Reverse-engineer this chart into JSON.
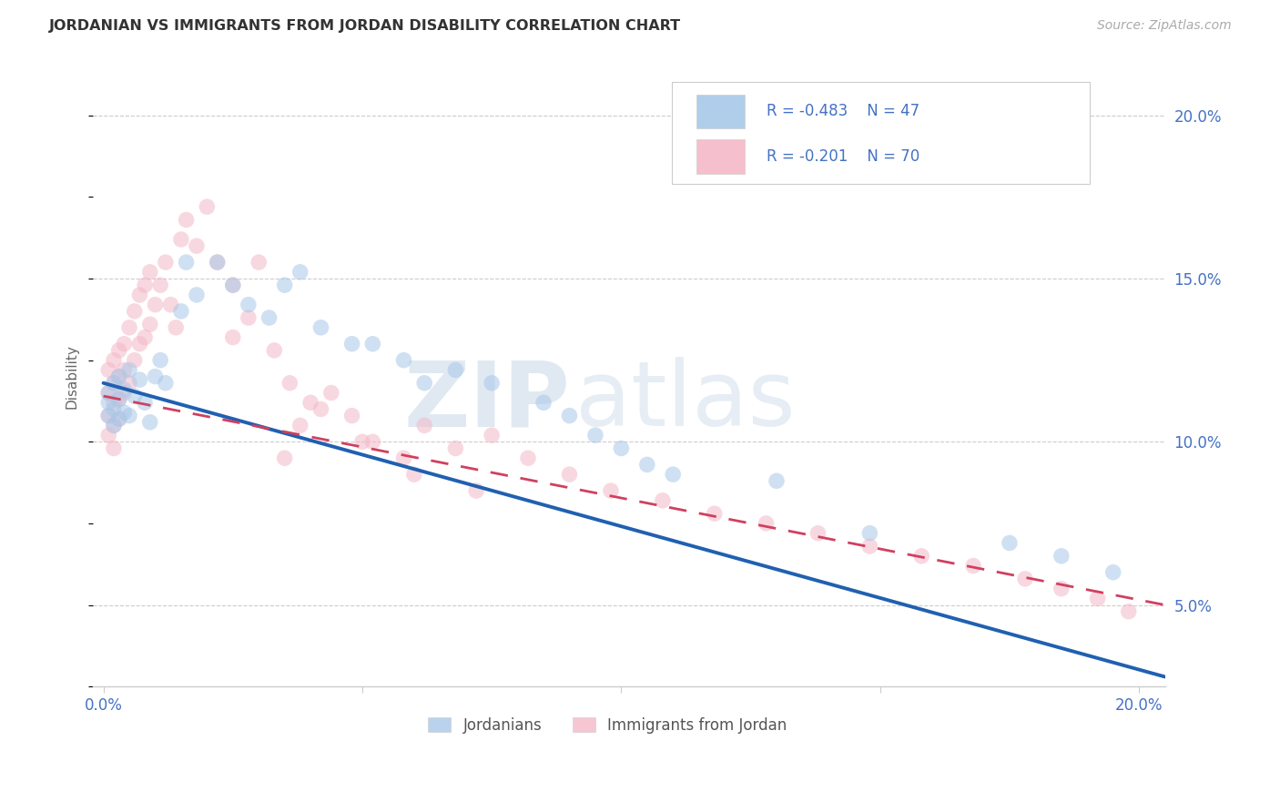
{
  "title": "JORDANIAN VS IMMIGRANTS FROM JORDAN DISABILITY CORRELATION CHART",
  "source": "Source: ZipAtlas.com",
  "ylabel": "Disability",
  "blue_color": "#a8c8e8",
  "pink_color": "#f4b8c8",
  "blue_line_color": "#2060b0",
  "pink_line_color": "#d04060",
  "xlim": [
    -0.002,
    0.205
  ],
  "ylim": [
    0.025,
    0.215
  ],
  "yticks": [
    0.05,
    0.1,
    0.15,
    0.2
  ],
  "ytick_labels": [
    "5.0%",
    "10.0%",
    "15.0%",
    "20.0%"
  ],
  "xticks": [
    0.0,
    0.05,
    0.1,
    0.15,
    0.2
  ],
  "xtick_labels": [
    "0.0%",
    "",
    "",
    "",
    "20.0%"
  ],
  "blue_label": "Jordanians",
  "pink_label": "Immigrants from Jordan",
  "blue_line_x": [
    0.0,
    0.205
  ],
  "blue_line_y": [
    0.118,
    0.028
  ],
  "pink_line_x": [
    0.0,
    0.205
  ],
  "pink_line_y": [
    0.114,
    0.05
  ],
  "watermark1": "ZIP",
  "watermark2": "atlas",
  "figsize": [
    14.06,
    8.92
  ],
  "dpi": 100,
  "jordanians_x": [
    0.001,
    0.001,
    0.001,
    0.002,
    0.002,
    0.002,
    0.003,
    0.003,
    0.003,
    0.004,
    0.004,
    0.005,
    0.005,
    0.006,
    0.007,
    0.008,
    0.009,
    0.01,
    0.011,
    0.012,
    0.015,
    0.016,
    0.018,
    0.022,
    0.025,
    0.028,
    0.032,
    0.035,
    0.038,
    0.042,
    0.048,
    0.052,
    0.058,
    0.062,
    0.068,
    0.075,
    0.085,
    0.09,
    0.095,
    0.1,
    0.105,
    0.11,
    0.13,
    0.148,
    0.175,
    0.185,
    0.195
  ],
  "jordanians_y": [
    0.115,
    0.112,
    0.108,
    0.118,
    0.11,
    0.105,
    0.12,
    0.113,
    0.107,
    0.116,
    0.109,
    0.122,
    0.108,
    0.114,
    0.119,
    0.112,
    0.106,
    0.12,
    0.125,
    0.118,
    0.14,
    0.155,
    0.145,
    0.155,
    0.148,
    0.142,
    0.138,
    0.148,
    0.152,
    0.135,
    0.13,
    0.13,
    0.125,
    0.118,
    0.122,
    0.118,
    0.112,
    0.108,
    0.102,
    0.098,
    0.093,
    0.09,
    0.088,
    0.072,
    0.069,
    0.065,
    0.06
  ],
  "immigrants_x": [
    0.001,
    0.001,
    0.001,
    0.001,
    0.002,
    0.002,
    0.002,
    0.002,
    0.002,
    0.003,
    0.003,
    0.003,
    0.003,
    0.004,
    0.004,
    0.004,
    0.005,
    0.005,
    0.006,
    0.006,
    0.007,
    0.007,
    0.008,
    0.008,
    0.009,
    0.009,
    0.01,
    0.011,
    0.012,
    0.013,
    0.014,
    0.015,
    0.016,
    0.018,
    0.02,
    0.022,
    0.025,
    0.028,
    0.03,
    0.033,
    0.036,
    0.04,
    0.044,
    0.048,
    0.052,
    0.058,
    0.062,
    0.068,
    0.075,
    0.082,
    0.09,
    0.098,
    0.108,
    0.118,
    0.128,
    0.138,
    0.148,
    0.158,
    0.168,
    0.178,
    0.185,
    0.192,
    0.198,
    0.05,
    0.035,
    0.06,
    0.072,
    0.038,
    0.025,
    0.042
  ],
  "immigrants_y": [
    0.122,
    0.115,
    0.108,
    0.102,
    0.125,
    0.118,
    0.112,
    0.105,
    0.098,
    0.128,
    0.12,
    0.113,
    0.107,
    0.13,
    0.122,
    0.115,
    0.135,
    0.118,
    0.14,
    0.125,
    0.145,
    0.13,
    0.148,
    0.132,
    0.152,
    0.136,
    0.142,
    0.148,
    0.155,
    0.142,
    0.135,
    0.162,
    0.168,
    0.16,
    0.172,
    0.155,
    0.148,
    0.138,
    0.155,
    0.128,
    0.118,
    0.112,
    0.115,
    0.108,
    0.1,
    0.095,
    0.105,
    0.098,
    0.102,
    0.095,
    0.09,
    0.085,
    0.082,
    0.078,
    0.075,
    0.072,
    0.068,
    0.065,
    0.062,
    0.058,
    0.055,
    0.052,
    0.048,
    0.1,
    0.095,
    0.09,
    0.085,
    0.105,
    0.132,
    0.11
  ]
}
